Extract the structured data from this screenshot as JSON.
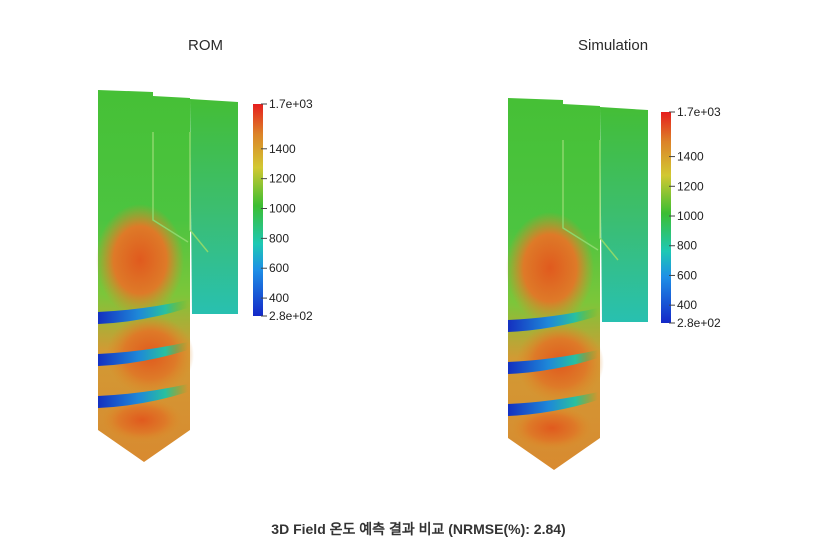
{
  "chart_data": [
    {
      "type": "heatmap",
      "title": "ROM",
      "colorbar": {
        "min_label": "2.8e+02",
        "max_label": "1.7e+03",
        "min": 280,
        "max": 1700,
        "ticks": [
          400,
          600,
          800,
          1000,
          1200,
          1400
        ]
      }
    },
    {
      "type": "heatmap",
      "title": "Simulation",
      "colorbar": {
        "min_label": "2.8e+02",
        "max_label": "1.7e+03",
        "min": 280,
        "max": 1700,
        "ticks": [
          400,
          600,
          800,
          1000,
          1200,
          1400
        ]
      }
    }
  ],
  "caption": "3D Field 온도 예측 결과 비교 (NRMSE(%): 2.84)",
  "colors": {
    "cold": "#1428c8",
    "cyan": "#1ec8b4",
    "green": "#3cbe32",
    "yellow": "#d2c832",
    "orange": "#dc8228",
    "red": "#e61e1e"
  }
}
